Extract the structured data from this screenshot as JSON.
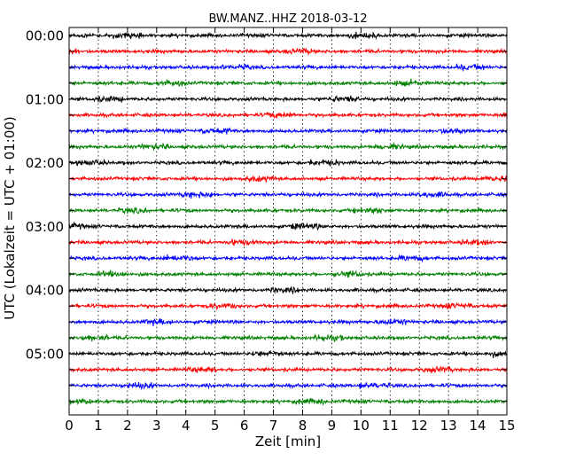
{
  "chart_data": {
    "type": "line",
    "title": "BW.MANZ..HHZ 2018-03-12",
    "xlabel": "Zeit  [min]",
    "ylabel": "UTC (Lokalzeit = UTC + 01:00)",
    "xlim": [
      0,
      15
    ],
    "x_ticks": [
      "0",
      "1",
      "2",
      "3",
      "4",
      "5",
      "6",
      "7",
      "8",
      "9",
      "10",
      "11",
      "12",
      "13",
      "14",
      "15"
    ],
    "y_ticks": [
      "00:00",
      "01:00",
      "02:00",
      "03:00",
      "04:00",
      "05:00"
    ],
    "traces_per_hour": 4,
    "trace_count": 24,
    "trace_colors": [
      "#000000",
      "#ff0000",
      "#0000ff",
      "#008000"
    ],
    "grid": "vertical dotted"
  }
}
